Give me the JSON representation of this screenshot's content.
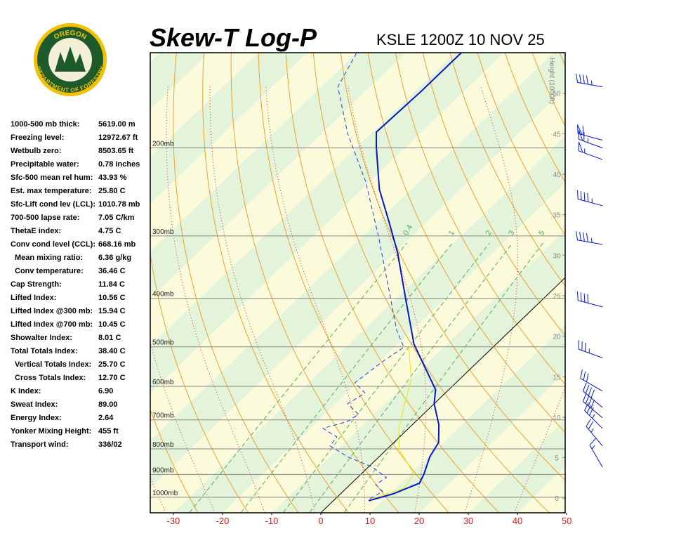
{
  "logo": {
    "top": "OREGON",
    "bottom": "DEPARTMENT OF FORESTRY"
  },
  "indices": [
    [
      "1000-500 mb thick:",
      "5619.00 m"
    ],
    [
      "Freezing level:",
      "12972.67 ft"
    ],
    [
      "Wetbulb zero:",
      "8503.65 ft"
    ],
    [
      "Precipitable water:",
      "0.78 inches"
    ],
    [
      "Sfc-500 mean rel hum:",
      "43.93 %"
    ],
    [
      "Est. max temperature:",
      "25.80 C"
    ],
    [
      "Sfc-Lift cond lev (LCL):",
      "1010.78 mb"
    ],
    [
      "700-500 lapse rate:",
      "7.05 C/km"
    ],
    [
      "ThetaE index:",
      "4.75 C"
    ],
    [
      "Conv cond level (CCL):",
      "668.16 mb"
    ],
    [
      "Mean mixing ratio:",
      "6.36 g/kg"
    ],
    [
      "Conv temperature:",
      "36.46 C"
    ],
    [
      "Cap Strength:",
      "11.84 C"
    ],
    [
      "Lifted Index:",
      "10.56 C"
    ],
    [
      "Lifted Index @300 mb:",
      "15.94 C"
    ],
    [
      "Lifted Index @700 mb:",
      "10.45 C"
    ],
    [
      "Showalter Index:",
      "8.01 C"
    ],
    [
      "Total Totals Index:",
      "38.40 C"
    ],
    [
      "Vertical Totals Index:",
      "25.70 C"
    ],
    [
      "Cross Totals Index:",
      "12.70 C"
    ],
    [
      "K Index:",
      "6.90"
    ],
    [
      "Sweat Index:",
      "89.00"
    ],
    [
      "Energy Index:",
      "2.64"
    ],
    [
      "Yonker Mixing Height:",
      "455 ft"
    ],
    [
      "Transport wind:",
      "336/02"
    ]
  ],
  "chart_data": {
    "type": "skewt",
    "title": "Skew-T Log-P",
    "subtitle": "KSLE 1200Z 10 NOV 25",
    "y2_label": "Height (1000ft)",
    "xlim": [
      -34.7,
      49.7
    ],
    "xticks": [
      -30,
      -20,
      -10,
      0,
      10,
      20,
      30,
      40,
      50
    ],
    "ylim": [
      1074,
      129
    ],
    "y_log": true,
    "yticks": [
      {
        "value": 200,
        "label": "200mb"
      },
      {
        "value": 300,
        "label": "300mb"
      },
      {
        "value": 400,
        "label": "400mb"
      },
      {
        "value": 500,
        "label": "500mb"
      },
      {
        "value": 600,
        "label": "600mb"
      },
      {
        "value": 700,
        "label": "700mb"
      },
      {
        "value": 800,
        "label": "800mb"
      },
      {
        "value": 900,
        "label": "900mb"
      },
      {
        "value": 1000,
        "label": "1000mb"
      }
    ],
    "y2lim": [
      -1.8,
      55
    ],
    "y2ticks": [
      0,
      5,
      10,
      15,
      20,
      25,
      30,
      35,
      40,
      45,
      50
    ],
    "mixing_ratio_labels": [
      0.4,
      1,
      2,
      3,
      5
    ],
    "series": [
      {
        "color": "#0018c8",
        "dash": false,
        "x": [
          7.2,
          10.7,
          13.8,
          12.8,
          10.3,
          9.1,
          5.4,
          0.0,
          -2.7,
          -12.5,
          -16.7,
          -27.3,
          -39.4,
          -47.9,
          -56.5,
          -66.1,
          -69.2,
          -68.7,
          -68.7
        ],
        "y": [
          1016,
          984,
          937,
          899,
          829,
          777,
          716,
          650,
          609,
          526,
          494,
          406,
          324,
          280,
          242,
          199,
          186,
          154,
          129
        ]
      },
      {
        "color": "#2040e0",
        "dash": true,
        "x": [
          7.0,
          8.1,
          5.2,
          5.9,
          0.8,
          -6.5,
          -12.3,
          -12.8,
          -17.4,
          -13.9,
          -13.2,
          -17.6,
          -16.3,
          -20.6,
          -19.4,
          -18.1,
          -23.2,
          -35.7,
          -46.1,
          -60.8,
          -74.8,
          -86.6,
          -90.0
        ],
        "y": [
          1006,
          974,
          943,
          913,
          870,
          829,
          789,
          757,
          728,
          705,
          682,
          650,
          619,
          590,
          535,
          501,
          463,
          368,
          304,
          234,
          187,
          151,
          129
        ]
      },
      {
        "color": "#e8e800",
        "dash": false,
        "x": [
          7.5,
          11.7,
          10.8,
          2.5,
          -2.0,
          -5.4,
          -9.9,
          -17.1
        ],
        "y": [
          1006,
          959,
          899,
          802,
          728,
          661,
          580,
          501
        ]
      }
    ],
    "winds": {
      "pressure": [
        151,
        193,
        200,
        211,
        261,
        312,
        416,
        526,
        613,
        661,
        693,
        728,
        789,
        870
      ],
      "direction": [
        280,
        285,
        290,
        290,
        285,
        280,
        285,
        290,
        300,
        310,
        310,
        315,
        320,
        330
      ],
      "speed": [
        45,
        60,
        65,
        55,
        45,
        45,
        40,
        35,
        30,
        40,
        40,
        35,
        25,
        15
      ],
      "color": "#0018c8"
    }
  }
}
